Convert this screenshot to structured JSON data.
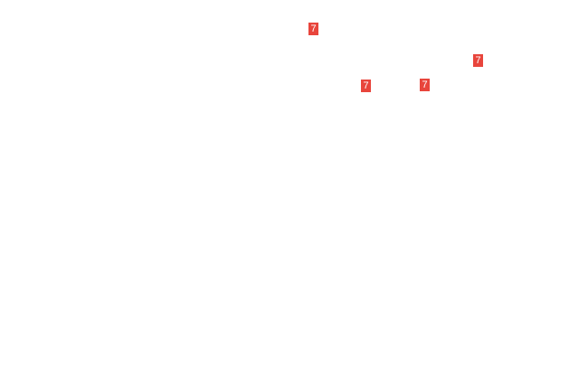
{
  "badge_color": "#e8453c",
  "badges": [
    {
      "label": "7"
    },
    {
      "label": "7"
    },
    {
      "label": "7"
    },
    {
      "label": "7"
    }
  ]
}
